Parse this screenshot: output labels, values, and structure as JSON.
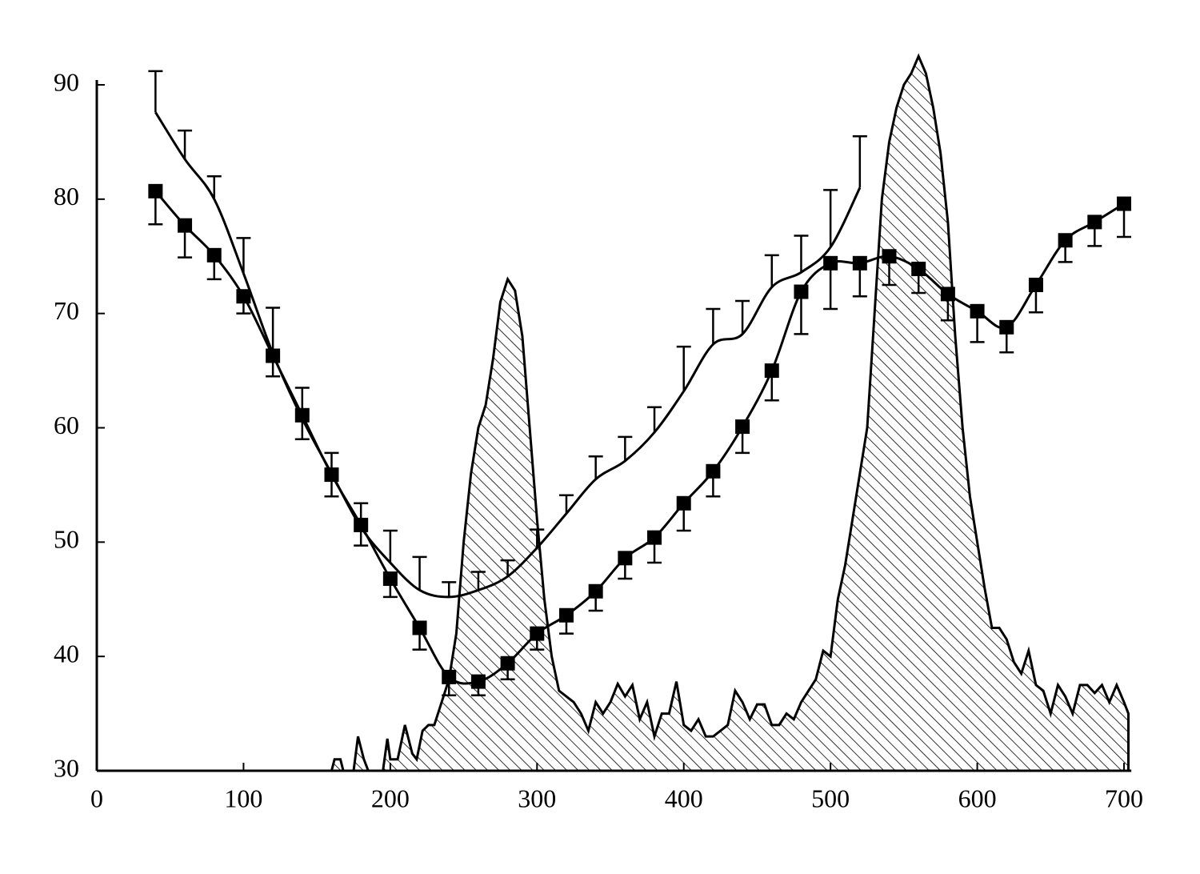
{
  "chart_data": {
    "type": "line",
    "xlim": [
      0,
      705
    ],
    "ylim": [
      30,
      90
    ],
    "xticks": [
      0,
      100,
      200,
      300,
      400,
      500,
      600,
      700
    ],
    "yticks": [
      30,
      40,
      50,
      60,
      70,
      80,
      90
    ],
    "series": [
      {
        "type": "area",
        "color": "#000000",
        "hatch": true,
        "x": [
          160,
          162,
          166,
          168,
          175,
          178,
          182,
          185,
          195,
          198,
          200,
          205,
          210,
          215,
          218,
          222,
          226,
          230,
          235,
          240,
          245,
          250,
          255,
          260,
          265,
          270,
          275,
          280,
          285,
          290,
          295,
          300,
          305,
          310,
          315,
          320,
          325,
          330,
          335,
          340,
          345,
          350,
          355,
          360,
          365,
          370,
          375,
          380,
          385,
          390,
          395,
          400,
          405,
          410,
          415,
          420,
          425,
          430,
          435,
          440,
          445,
          450,
          455,
          460,
          465,
          470,
          475,
          480,
          485,
          490,
          495,
          500,
          505,
          510,
          515,
          520,
          525,
          530,
          535,
          540,
          545,
          550,
          555,
          560,
          565,
          570,
          575,
          580,
          585,
          590,
          595,
          600,
          605,
          610,
          615,
          620,
          625,
          630,
          635,
          640,
          645,
          650,
          655,
          660,
          665,
          670,
          675,
          680,
          685,
          690,
          695,
          700,
          703
        ],
        "values": [
          30,
          31,
          31,
          30,
          30,
          33,
          31,
          30,
          30,
          32.8,
          31,
          31,
          34,
          31.5,
          31,
          33.5,
          34,
          34,
          36,
          38,
          42,
          50,
          56,
          60,
          62,
          66,
          71,
          73,
          72,
          68,
          60,
          52,
          45,
          40,
          37,
          36.5,
          36,
          35,
          33.5,
          36,
          35,
          36,
          37.6,
          36.5,
          37.5,
          34.5,
          36,
          33,
          35,
          35,
          37.8,
          34,
          33.5,
          34.5,
          33,
          33,
          33.5,
          34,
          37,
          36,
          34.5,
          35.8,
          35.8,
          34,
          34,
          35,
          34.5,
          36,
          37,
          38,
          40.5,
          40,
          45,
          48,
          52,
          56,
          60,
          70,
          80,
          85,
          88,
          90,
          91,
          92.5,
          91,
          88,
          84,
          78,
          68,
          60,
          54,
          50,
          46,
          42.5,
          42.5,
          41.5,
          39.5,
          38.5,
          40.5,
          37.5,
          37,
          35,
          37.5,
          36.5,
          35,
          37.5,
          37.5,
          36.8,
          37.5,
          36,
          37.5,
          36,
          35
        ]
      },
      {
        "type": "line",
        "color": "#000000",
        "marker": "square",
        "error_direction": "lower",
        "x": [
          40,
          60,
          80,
          100,
          120,
          140,
          160,
          180,
          200,
          220,
          240,
          260,
          280,
          300,
          320,
          340,
          360,
          380,
          400,
          420,
          440,
          460,
          480,
          500,
          520,
          540,
          560,
          580,
          600,
          620,
          640,
          660,
          680,
          700
        ],
        "values": [
          80.7,
          77.7,
          75.1,
          71.5,
          66.3,
          61.1,
          55.9,
          51.5,
          46.8,
          42.5,
          38.2,
          37.8,
          39.4,
          42.0,
          43.6,
          45.7,
          48.6,
          50.4,
          53.4,
          56.2,
          60.1,
          65.0,
          71.9,
          74.4,
          74.4,
          75.0,
          73.9,
          71.7,
          70.2,
          68.8,
          72.5,
          76.4,
          78.0,
          79.6
        ],
        "errors": [
          2.9,
          2.8,
          2.1,
          1.5,
          1.8,
          2.1,
          1.9,
          1.8,
          1.6,
          1.9,
          1.6,
          1.2,
          1.4,
          1.4,
          1.6,
          1.7,
          1.8,
          2.2,
          2.4,
          2.2,
          2.3,
          2.6,
          3.7,
          4,
          2.9,
          2.5,
          2.1,
          2.3,
          2.7,
          2.2,
          2.4,
          1.9,
          2.1,
          2.9
        ]
      },
      {
        "type": "line",
        "color": "#000000",
        "marker": "none",
        "error_direction": "upper",
        "x": [
          40,
          60,
          80,
          100,
          120,
          140,
          160,
          180,
          200,
          220,
          240,
          260,
          280,
          300,
          320,
          340,
          360,
          380,
          400,
          420,
          440,
          460,
          480,
          500,
          520
        ],
        "values": [
          87.6,
          83.5,
          80,
          73.5,
          66.5,
          60.8,
          56,
          51.3,
          48.2,
          45.8,
          45.2,
          45.8,
          47,
          49.5,
          52.5,
          55.5,
          57.1,
          59.6,
          63.2,
          67.3,
          68.2,
          72.3,
          73.6,
          75.8,
          81
        ],
        "errors": [
          3.6,
          2.5,
          2,
          3.1,
          4,
          2.7,
          1.8,
          2.1,
          2.8,
          2.9,
          1.3,
          1.6,
          1.4,
          1.6,
          1.6,
          2,
          2.1,
          2.2,
          3.9,
          3.1,
          2.9,
          2.8,
          3.2,
          5,
          4.5
        ]
      }
    ]
  }
}
